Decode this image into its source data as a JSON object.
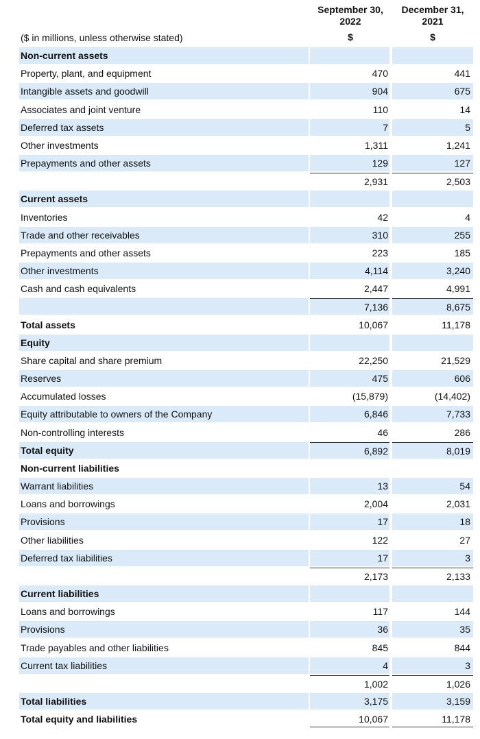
{
  "header": {
    "columns": [
      "September 30, 2022",
      "December 31, 2021"
    ],
    "currency": [
      "$",
      "$"
    ]
  },
  "note": "($ in millions, unless otherwise stated)",
  "table": {
    "rows": [
      [
        "Non-current assets"
      ],
      [
        "Property, plant, and equipment",
        "470",
        "441"
      ],
      [
        "Intangible assets and goodwill",
        "904",
        "675"
      ],
      [
        "Associates and joint venture",
        "110",
        "14"
      ],
      [
        "Deferred tax assets",
        "7",
        "5"
      ],
      [
        "Other investments",
        "1,311",
        "1,241"
      ],
      [
        "Prepayments and other assets",
        "129",
        "127"
      ],
      [
        null,
        "2,931",
        "2,503"
      ],
      [
        "Current assets"
      ],
      [
        "Inventories",
        "42",
        "4"
      ],
      [
        "Trade and other receivables",
        "310",
        "255"
      ],
      [
        "Prepayments and other assets",
        "223",
        "185"
      ],
      [
        "Other investments",
        "4,114",
        "3,240"
      ],
      [
        "Cash and cash equivalents",
        "2,447",
        "4,991"
      ],
      [
        null,
        "7,136",
        "8,675"
      ],
      [
        "Total assets",
        "10,067",
        "11,178"
      ],
      [
        "Equity"
      ],
      [
        "Share capital and share premium",
        "22,250",
        "21,529"
      ],
      [
        "Reserves",
        "475",
        "606"
      ],
      [
        "Accumulated losses",
        "(15,879)",
        "(14,402)"
      ],
      [
        "Equity attributable to owners of the Company",
        "6,846",
        "7,733"
      ],
      [
        "Non-controlling interests",
        "46",
        "286"
      ],
      [
        "Total equity",
        "6,892",
        "8,019"
      ],
      [
        "Non-current liabilities"
      ],
      [
        "Warrant liabilities",
        "13",
        "54"
      ],
      [
        "Loans and borrowings",
        "2,004",
        "2,031"
      ],
      [
        "Provisions",
        "17",
        "18"
      ],
      [
        "Other liabilities",
        "122",
        "27"
      ],
      [
        "Deferred tax liabilities",
        "17",
        "3"
      ],
      [
        null,
        "2,173",
        "2,133"
      ],
      [
        "Current liabilities"
      ],
      [
        "Loans and borrowings",
        "117",
        "144"
      ],
      [
        "Provisions",
        "36",
        "35"
      ],
      [
        "Trade payables and other liabilities",
        "845",
        "844"
      ],
      [
        "Current tax liabilities",
        "4",
        "3"
      ],
      [
        null,
        "1,002",
        "1,026"
      ],
      [
        "Total liabilities",
        "3,175",
        "3,159"
      ],
      [
        "Total equity and liabilities",
        "10,067",
        "11,178"
      ]
    ]
  }
}
